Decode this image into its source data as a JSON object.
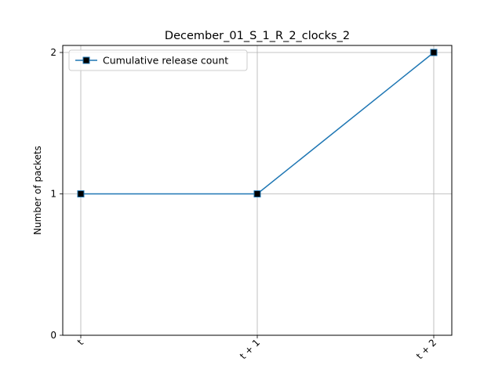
{
  "chart_data": {
    "type": "line",
    "title": "December_01_S_1_R_2_clocks_2",
    "xlabel": "",
    "ylabel": "Number of packets",
    "categories": [
      "t",
      "t + 1",
      "t + 2"
    ],
    "series": [
      {
        "name": "Cumulative release count",
        "values": [
          1,
          1,
          2
        ],
        "marker": "square"
      }
    ],
    "ylim": [
      0,
      2
    ],
    "yticks": [
      "0",
      "1",
      "2"
    ],
    "grid": true,
    "legend_position": "top-left",
    "colors": {
      "line": "#1f77b4",
      "marker_fill": "#000000",
      "grid": "#b0b0b0",
      "axis": "#000000"
    }
  }
}
